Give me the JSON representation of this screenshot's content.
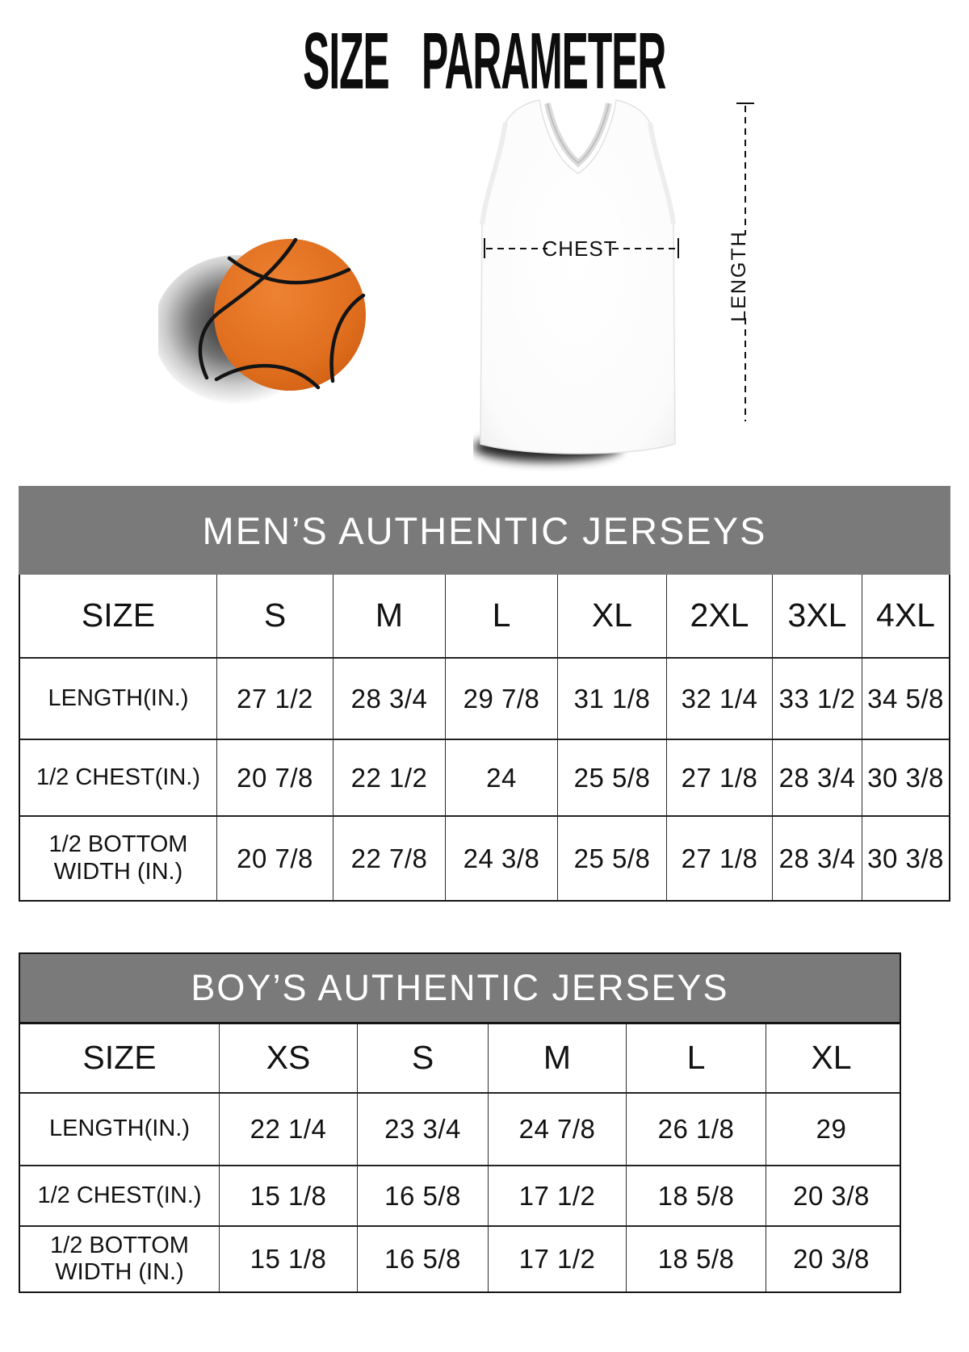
{
  "page": {
    "title": "SIZE PARAMETER"
  },
  "colors": {
    "band_background": "#7a7a7a",
    "band_text": "#ffffff",
    "table_border": "#141414",
    "text": "#121212",
    "basketball_orange": "#e06f1f",
    "seam_black": "#141414"
  },
  "diagram": {
    "chest_label": "CHEST",
    "length_label": "LENGTH",
    "icons": [
      "basketball-icon",
      "jersey-image"
    ]
  },
  "mens_table": {
    "title": "MEN’S AUTHENTIC JERSEYS",
    "columns": [
      "SIZE",
      "S",
      "M",
      "L",
      "XL",
      "2XL",
      "3XL",
      "4XL"
    ],
    "rows": [
      {
        "label": "LENGTH(IN.)",
        "values": [
          "27 1/2",
          "28 3/4",
          "29 7/8",
          "31 1/8",
          "32 1/4",
          "33 1/2",
          "34 5/8"
        ]
      },
      {
        "label": "1/2 CHEST(IN.)",
        "values": [
          "20 7/8",
          "22 1/2",
          "24",
          "25 5/8",
          "27 1/8",
          "28 3/4",
          "30 3/8"
        ]
      },
      {
        "label": "1/2 BOTTOM WIDTH (IN.)",
        "values": [
          "20 7/8",
          "22 7/8",
          "24 3/8",
          "25 5/8",
          "27 1/8",
          "28 3/4",
          "30 3/8"
        ]
      }
    ]
  },
  "boys_table": {
    "title": "BOY’S AUTHENTIC JERSEYS",
    "columns": [
      "SIZE",
      "XS",
      "S",
      "M",
      "L",
      "XL"
    ],
    "rows": [
      {
        "label": "LENGTH(IN.)",
        "values": [
          "22 1/4",
          "23 3/4",
          "24 7/8",
          "26 1/8",
          "29"
        ]
      },
      {
        "label": "1/2 CHEST(IN.)",
        "values": [
          "15 1/8",
          "16 5/8",
          "17 1/2",
          "18 5/8",
          "20 3/8"
        ]
      },
      {
        "label": "1/2 BOTTOM WIDTH (IN.)",
        "values": [
          "15 1/8",
          "16 5/8",
          "17 1/2",
          "18 5/8",
          "20 3/8"
        ]
      }
    ]
  }
}
